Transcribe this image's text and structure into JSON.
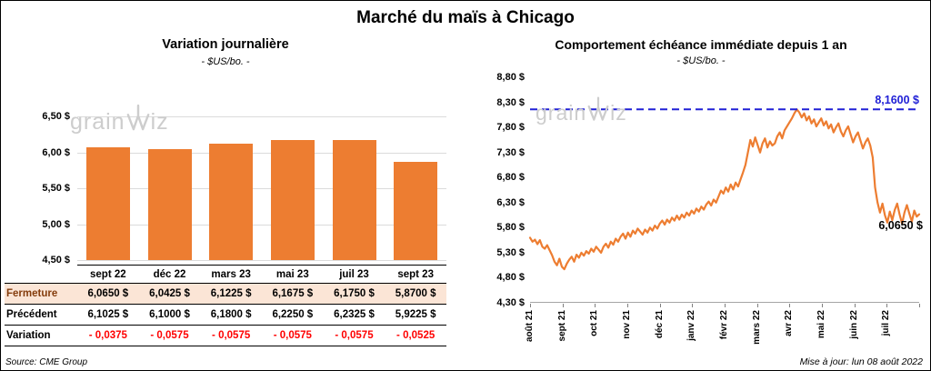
{
  "page": {
    "title": "Marché du maïs à Chicago",
    "source": "Source: CME Group",
    "updated": "Mise à jour: lun 08 août 2022",
    "watermark": {
      "pre": "grain",
      "post": "iz"
    }
  },
  "chart_data": [
    {
      "type": "bar",
      "title": "Variation journalière",
      "subtitle": "- $US/bo. -",
      "categories": [
        "sept 22",
        "déc 22",
        "mars 23",
        "mai 23",
        "juil 23",
        "sept 23"
      ],
      "values": [
        6.065,
        6.0425,
        6.1225,
        6.1675,
        6.175,
        5.87
      ],
      "ylim": [
        4.5,
        6.5
      ],
      "y_ticks": [
        "6,50 $",
        "6,00 $",
        "5,50 $",
        "5,00 $",
        "4,50 $"
      ],
      "bar_color": "#ED7D31",
      "grid": true,
      "legend": "none"
    },
    {
      "type": "line",
      "title": "Comportement échéance immédiate depuis 1 an",
      "subtitle": "- $US/bo. -",
      "x_labels": [
        "août 21",
        "sept 21",
        "oct 21",
        "nov 21",
        "déc 21",
        "janv 22",
        "févr 22",
        "mars 22",
        "avr 22",
        "mai 22",
        "juin 22",
        "juil 22"
      ],
      "ylim": [
        4.3,
        8.8
      ],
      "y_ticks": [
        "8,80 $",
        "8,30 $",
        "7,80 $",
        "7,30 $",
        "6,80 $",
        "6,30 $",
        "5,80 $",
        "5,30 $",
        "4,80 $",
        "4,30 $"
      ],
      "line_color": "#ED7D31",
      "ref_line": {
        "value": 8.16,
        "label": "8,1600 $",
        "color": "#2121D6"
      },
      "last_label": "6,0650 $",
      "grid": false,
      "legend": "none",
      "values": [
        5.6,
        5.52,
        5.56,
        5.47,
        5.55,
        5.42,
        5.38,
        5.45,
        5.35,
        5.25,
        5.12,
        5.05,
        5.18,
        5.02,
        4.97,
        5.08,
        5.16,
        5.22,
        5.12,
        5.26,
        5.2,
        5.3,
        5.24,
        5.33,
        5.28,
        5.38,
        5.32,
        5.42,
        5.36,
        5.3,
        5.42,
        5.48,
        5.4,
        5.52,
        5.46,
        5.58,
        5.52,
        5.62,
        5.68,
        5.58,
        5.7,
        5.62,
        5.74,
        5.68,
        5.78,
        5.72,
        5.66,
        5.76,
        5.7,
        5.8,
        5.74,
        5.84,
        5.78,
        5.88,
        5.94,
        5.86,
        5.96,
        5.9,
        6.0,
        5.94,
        6.04,
        5.96,
        6.06,
        6.0,
        6.1,
        6.04,
        6.14,
        6.08,
        6.18,
        6.12,
        6.22,
        6.16,
        6.26,
        6.32,
        6.24,
        6.36,
        6.3,
        6.42,
        6.54,
        6.48,
        6.6,
        6.52,
        6.66,
        6.56,
        6.7,
        6.62,
        6.76,
        6.9,
        7.05,
        7.3,
        7.55,
        7.42,
        7.6,
        7.45,
        7.3,
        7.48,
        7.58,
        7.4,
        7.52,
        7.44,
        7.48,
        7.62,
        7.7,
        7.58,
        7.74,
        7.82,
        7.9,
        7.98,
        8.08,
        8.16,
        8.1,
        8.0,
        8.08,
        7.94,
        8.02,
        7.88,
        7.96,
        7.82,
        7.9,
        7.98,
        7.84,
        7.92,
        7.78,
        7.86,
        7.7,
        7.8,
        7.88,
        7.72,
        7.62,
        7.74,
        7.82,
        7.66,
        7.5,
        7.62,
        7.7,
        7.54,
        7.38,
        7.5,
        7.58,
        7.44,
        7.2,
        6.6,
        6.3,
        6.1,
        6.28,
        6.05,
        5.9,
        6.12,
        5.95,
        6.15,
        6.28,
        6.06,
        5.88,
        6.1,
        6.25,
        6.08,
        5.92,
        6.14,
        6.02,
        6.065
      ]
    }
  ],
  "table": {
    "highlight_bg": "#FBE5D6",
    "highlight_label_color": "#843C0C",
    "negative_color": "#FF0000",
    "rows": [
      {
        "label": "Fermeture",
        "highlight": true,
        "values": [
          "6,0650 $",
          "6,0425 $",
          "6,1225 $",
          "6,1675 $",
          "6,1750 $",
          "5,8700 $"
        ]
      },
      {
        "label": "Précédent",
        "values": [
          "6,1025 $",
          "6,1000 $",
          "6,1800 $",
          "6,2250 $",
          "6,2325 $",
          "5,9225 $"
        ]
      },
      {
        "label": "Variation",
        "negative": true,
        "values": [
          "- 0,0375",
          "- 0,0575",
          "- 0,0575",
          "- 0,0575",
          "- 0,0575",
          "- 0,0525"
        ]
      }
    ]
  }
}
